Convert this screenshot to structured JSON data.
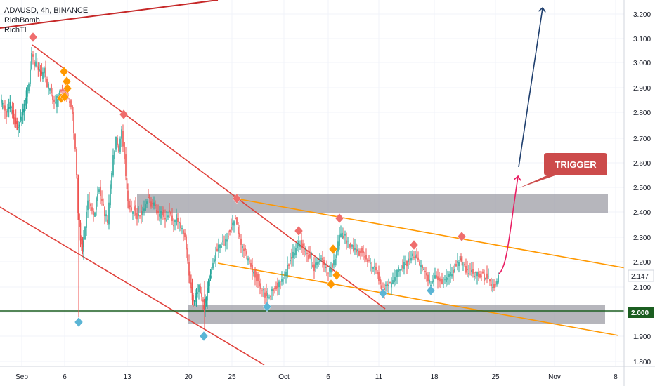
{
  "legend": {
    "symbol_line": "ADAUSD, 4h, BINANCE",
    "indicator_1": "RichBomb",
    "indicator_2": "RichTL"
  },
  "chart_data": {
    "type": "candlestick",
    "symbol": "ADAUSD",
    "interval": "4h",
    "exchange": "BINANCE",
    "y_axis": {
      "ticks": [
        "3.200",
        "3.100",
        "3.000",
        "2.900",
        "2.800",
        "2.700",
        "2.600",
        "2.500",
        "2.400",
        "2.300",
        "2.200",
        "2.100",
        "2.000",
        "1.900",
        "1.800"
      ],
      "range": [
        1.78,
        3.24
      ]
    },
    "x_axis": {
      "ticks": [
        "Sep",
        "6",
        "13",
        "20",
        "25",
        "Oct",
        "6",
        "11",
        "18",
        "25",
        "Nov",
        "8"
      ]
    },
    "current_price": "2.147",
    "support_price_label": "2.000",
    "annotation": "TRIGGER",
    "colors": {
      "up": "#26a69a",
      "down": "#ef5350",
      "trendline_red": "#e0403a",
      "channel_orange": "#ff9800",
      "support_green": "#1b5e20",
      "zone_gray": "#9e9ea6",
      "arrow_blue": "#1f3f6e",
      "arrow_pink": "#e91e63",
      "marker_red": "#ef6d6d",
      "marker_orange": "#ff9800",
      "marker_blue": "#5bb5d5",
      "trigger_bg": "#cc4b4b"
    },
    "price_path": [
      [
        1,
        2.85
      ],
      [
        6,
        2.82
      ],
      [
        10,
        2.8
      ],
      [
        15,
        2.83
      ],
      [
        20,
        2.78
      ],
      [
        25,
        2.74
      ],
      [
        30,
        2.78
      ],
      [
        35,
        2.83
      ],
      [
        38,
        2.88
      ],
      [
        42,
        2.92
      ],
      [
        46,
        3.03
      ],
      [
        50,
        3.0
      ],
      [
        55,
        2.98
      ],
      [
        60,
        2.95
      ],
      [
        64,
        2.97
      ],
      [
        68,
        2.91
      ],
      [
        72,
        2.9
      ],
      [
        76,
        2.86
      ],
      [
        80,
        2.84
      ],
      [
        84,
        2.87
      ],
      [
        88,
        2.9
      ],
      [
        92,
        2.89
      ],
      [
        96,
        2.87
      ],
      [
        100,
        2.85
      ],
      [
        104,
        2.8
      ],
      [
        108,
        2.65
      ],
      [
        110,
        2.55
      ],
      [
        112,
        2.4
      ],
      [
        115,
        2.3
      ],
      [
        118,
        2.25
      ],
      [
        122,
        2.35
      ],
      [
        126,
        2.45
      ],
      [
        130,
        2.42
      ],
      [
        134,
        2.38
      ],
      [
        138,
        2.45
      ],
      [
        142,
        2.5
      ],
      [
        146,
        2.44
      ],
      [
        150,
        2.4
      ],
      [
        154,
        2.36
      ],
      [
        158,
        2.5
      ],
      [
        162,
        2.62
      ],
      [
        166,
        2.7
      ],
      [
        170,
        2.65
      ],
      [
        174,
        2.72
      ],
      [
        178,
        2.62
      ],
      [
        181,
        2.48
      ],
      [
        184,
        2.42
      ],
      [
        188,
        2.4
      ],
      [
        192,
        2.42
      ],
      [
        196,
        2.38
      ],
      [
        200,
        2.4
      ],
      [
        204,
        2.4
      ],
      [
        208,
        2.44
      ],
      [
        212,
        2.46
      ],
      [
        216,
        2.43
      ],
      [
        220,
        2.44
      ],
      [
        224,
        2.4
      ],
      [
        228,
        2.39
      ],
      [
        232,
        2.4
      ],
      [
        236,
        2.37
      ],
      [
        240,
        2.4
      ],
      [
        244,
        2.38
      ],
      [
        248,
        2.35
      ],
      [
        252,
        2.38
      ],
      [
        256,
        2.36
      ],
      [
        260,
        2.33
      ],
      [
        264,
        2.3
      ],
      [
        268,
        2.2
      ],
      [
        271,
        2.12
      ],
      [
        274,
        2.06
      ],
      [
        277,
        2.04
      ],
      [
        280,
        2.08
      ],
      [
        284,
        2.1
      ],
      [
        288,
        2.06
      ],
      [
        291,
        2.02
      ],
      [
        294,
        2.06
      ],
      [
        297,
        2.12
      ],
      [
        300,
        2.16
      ],
      [
        304,
        2.2
      ],
      [
        308,
        2.24
      ],
      [
        312,
        2.26
      ],
      [
        316,
        2.28
      ],
      [
        320,
        2.27
      ],
      [
        324,
        2.3
      ],
      [
        328,
        2.33
      ],
      [
        332,
        2.35
      ],
      [
        336,
        2.38
      ],
      [
        340,
        2.32
      ],
      [
        344,
        2.27
      ],
      [
        348,
        2.25
      ],
      [
        352,
        2.22
      ],
      [
        356,
        2.2
      ],
      [
        360,
        2.17
      ],
      [
        364,
        2.15
      ],
      [
        368,
        2.13
      ],
      [
        372,
        2.1
      ],
      [
        376,
        2.08
      ],
      [
        380,
        2.06
      ],
      [
        384,
        2.07
      ],
      [
        388,
        2.08
      ],
      [
        392,
        2.1
      ],
      [
        396,
        2.11
      ],
      [
        400,
        2.12
      ],
      [
        404,
        2.14
      ],
      [
        408,
        2.16
      ],
      [
        412,
        2.2
      ],
      [
        416,
        2.22
      ],
      [
        420,
        2.24
      ],
      [
        424,
        2.27
      ],
      [
        428,
        2.28
      ],
      [
        432,
        2.26
      ],
      [
        436,
        2.24
      ],
      [
        440,
        2.22
      ],
      [
        444,
        2.2
      ],
      [
        448,
        2.18
      ],
      [
        452,
        2.2
      ],
      [
        456,
        2.21
      ],
      [
        460,
        2.2
      ],
      [
        464,
        2.18
      ],
      [
        468,
        2.16
      ],
      [
        472,
        2.18
      ],
      [
        476,
        2.2
      ],
      [
        480,
        2.24
      ],
      [
        484,
        2.3
      ],
      [
        488,
        2.32
      ],
      [
        492,
        2.3
      ],
      [
        496,
        2.28
      ],
      [
        500,
        2.27
      ],
      [
        504,
        2.26
      ],
      [
        508,
        2.25
      ],
      [
        512,
        2.24
      ],
      [
        516,
        2.25
      ],
      [
        520,
        2.22
      ],
      [
        524,
        2.2
      ],
      [
        528,
        2.19
      ],
      [
        532,
        2.18
      ],
      [
        536,
        2.17
      ],
      [
        540,
        2.14
      ],
      [
        544,
        2.1
      ],
      [
        548,
        2.1
      ],
      [
        552,
        2.12
      ],
      [
        556,
        2.11
      ],
      [
        560,
        2.13
      ],
      [
        564,
        2.15
      ],
      [
        568,
        2.17
      ],
      [
        572,
        2.18
      ],
      [
        576,
        2.19
      ],
      [
        580,
        2.2
      ],
      [
        584,
        2.22
      ],
      [
        588,
        2.23
      ],
      [
        592,
        2.22
      ],
      [
        596,
        2.2
      ],
      [
        600,
        2.18
      ],
      [
        604,
        2.16
      ],
      [
        608,
        2.14
      ],
      [
        612,
        2.12
      ],
      [
        616,
        2.13
      ],
      [
        620,
        2.14
      ],
      [
        624,
        2.13
      ],
      [
        628,
        2.12
      ],
      [
        632,
        2.12
      ],
      [
        636,
        2.14
      ],
      [
        640,
        2.15
      ],
      [
        644,
        2.16
      ],
      [
        648,
        2.18
      ],
      [
        652,
        2.2
      ],
      [
        655,
        2.22
      ],
      [
        658,
        2.2
      ],
      [
        662,
        2.18
      ],
      [
        666,
        2.16
      ],
      [
        670,
        2.17
      ],
      [
        674,
        2.15
      ],
      [
        678,
        2.16
      ],
      [
        682,
        2.14
      ],
      [
        686,
        2.15
      ],
      [
        690,
        2.14
      ],
      [
        694,
        2.15
      ],
      [
        698,
        2.12
      ],
      [
        702,
        2.1
      ],
      [
        706,
        2.12
      ],
      [
        710,
        2.14
      ]
    ]
  }
}
